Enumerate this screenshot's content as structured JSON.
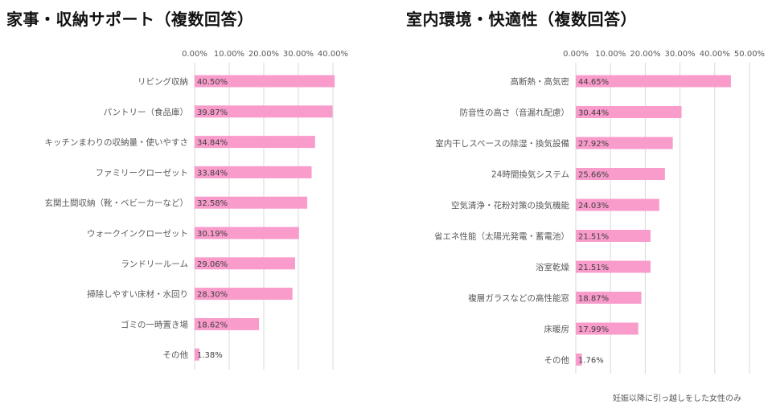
{
  "colors": {
    "bar": "#f99bcb",
    "grid": "#d9d9d9",
    "text": "#595959"
  },
  "footnote": "妊娠以降に引っ越しをした女性のみ",
  "chart_data": [
    {
      "type": "bar",
      "orientation": "horizontal",
      "title": "家事・収納サポート（複数回答）",
      "xlim": [
        0,
        40
      ],
      "x_ticks": [
        "0.00%",
        "10.00%",
        "20.00%",
        "30.00%",
        "40.00%"
      ],
      "categories": [
        "リビング収納",
        "パントリー（食品庫）",
        "キッチンまわりの収納量・使いやすさ",
        "ファミリークローゼット",
        "玄関土間収納（靴・ベビーカーなど）",
        "ウォークインクローゼット",
        "ランドリールーム",
        "掃除しやすい床材・水回り",
        "ゴミの一時置き場",
        "その他"
      ],
      "values": [
        40.5,
        39.87,
        34.84,
        33.84,
        32.58,
        30.19,
        29.06,
        28.3,
        18.62,
        1.38
      ],
      "value_labels": [
        "40.50%",
        "39.87%",
        "34.84%",
        "33.84%",
        "32.58%",
        "30.19%",
        "29.06%",
        "28.30%",
        "18.62%",
        "1.38%"
      ],
      "grid": true
    },
    {
      "type": "bar",
      "orientation": "horizontal",
      "title": "室内環境・快適性（複数回答）",
      "xlim": [
        0,
        50
      ],
      "x_ticks": [
        "0.00%",
        "10.00%",
        "20.00%",
        "30.00%",
        "40.00%",
        "50.00%"
      ],
      "categories": [
        "高断熱・高気密",
        "防音性の高さ（音漏れ配慮）",
        "室内干しスペースの除湿・換気設備",
        "24時間換気システム",
        "空気清浄・花粉対策の換気機能",
        "省エネ性能（太陽光発電・蓄電池）",
        "浴室乾燥",
        "複層ガラスなどの高性能窓",
        "床暖房",
        "その他"
      ],
      "values": [
        44.65,
        30.44,
        27.92,
        25.66,
        24.03,
        21.51,
        21.51,
        18.87,
        17.99,
        1.76
      ],
      "value_labels": [
        "44.65%",
        "30.44%",
        "27.92%",
        "25.66%",
        "24.03%",
        "21.51%",
        "21.51%",
        "18.87%",
        "17.99%",
        "1.76%"
      ],
      "grid": true
    }
  ]
}
